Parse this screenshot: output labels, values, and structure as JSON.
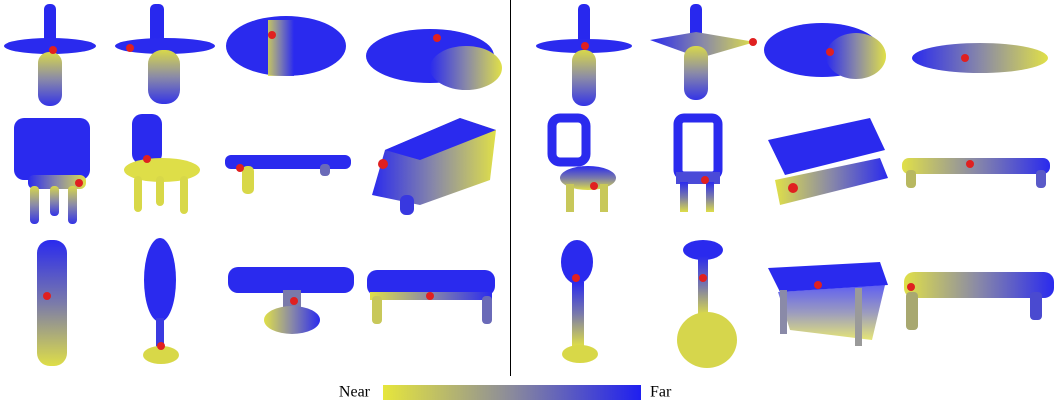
{
  "colorbar": {
    "min_label": "Near",
    "max_label": "Far"
  }
}
